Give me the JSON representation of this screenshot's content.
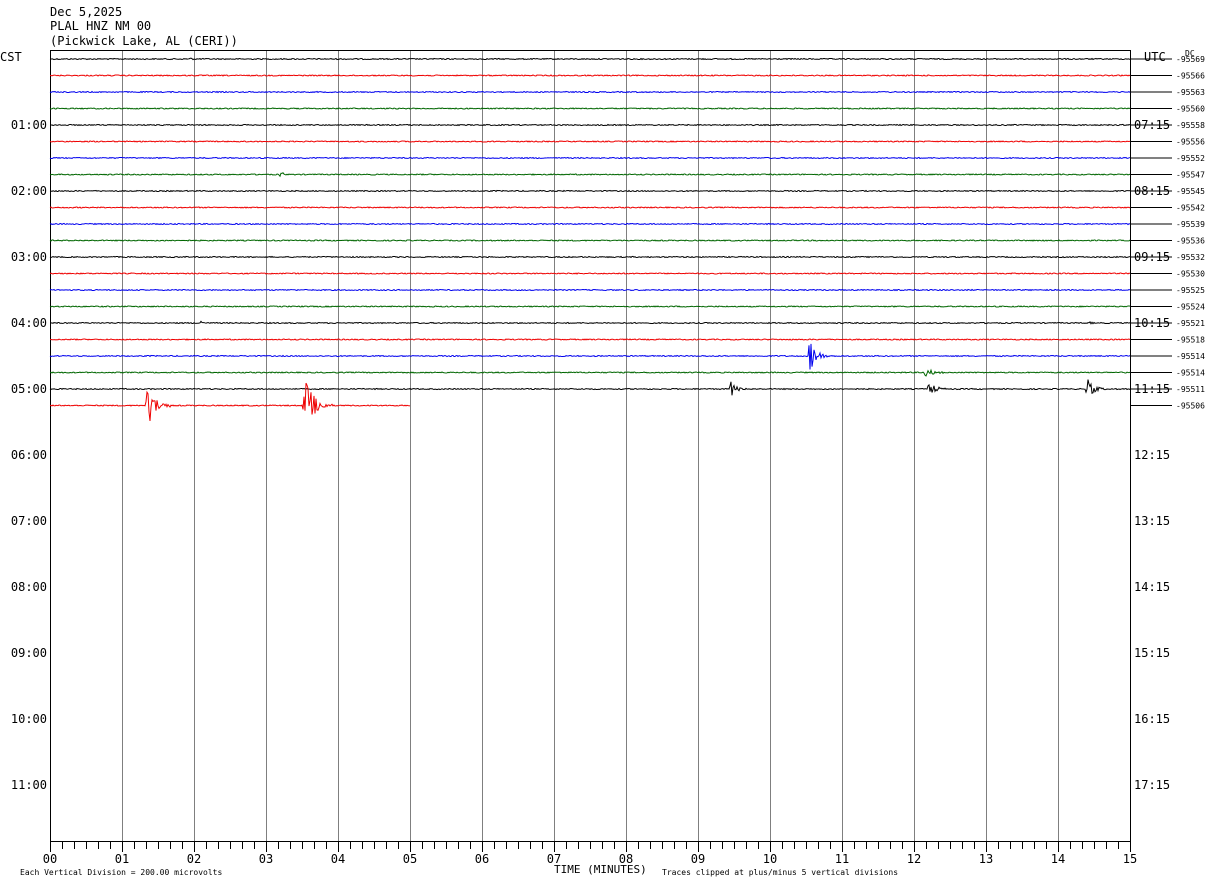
{
  "header": {
    "date": "Dec 5,2025",
    "station": "PLAL HNZ NM 00",
    "location": "(Pickwick Lake, AL (CERI))"
  },
  "labels": {
    "left_zone": "CST",
    "right_zone": "UTC",
    "dc": "DC",
    "xlabel": "TIME (MINUTES)",
    "scale_note": "Each Vertical Division =  200.00 microvolts",
    "clip_note": "Traces clipped at plus/minus 5 vertical divisions"
  },
  "colors": {
    "cycle": [
      "#000000",
      "#ee0000",
      "#0000ee",
      "#006600"
    ],
    "grid": "#7f7f7f"
  },
  "chart_data": {
    "type": "line",
    "title": "PLAL HNZ NM 00",
    "xlabel": "TIME (MINUTES)",
    "xlim": [
      0,
      15
    ],
    "x_ticks": [
      "00",
      "01",
      "02",
      "03",
      "04",
      "05",
      "06",
      "07",
      "08",
      "09",
      "10",
      "11",
      "12",
      "13",
      "14",
      "15"
    ],
    "row_minutes": 15,
    "rows_total": 48,
    "left_time_labels": [
      {
        "row": 4,
        "label": "01:00"
      },
      {
        "row": 8,
        "label": "02:00"
      },
      {
        "row": 12,
        "label": "03:00"
      },
      {
        "row": 16,
        "label": "04:00"
      },
      {
        "row": 20,
        "label": "05:00"
      },
      {
        "row": 24,
        "label": "06:00"
      },
      {
        "row": 28,
        "label": "07:00"
      },
      {
        "row": 32,
        "label": "08:00"
      },
      {
        "row": 36,
        "label": "09:00"
      },
      {
        "row": 40,
        "label": "10:00"
      },
      {
        "row": 44,
        "label": "11:00"
      }
    ],
    "right_time_labels": [
      {
        "row": 4,
        "label": "07:15"
      },
      {
        "row": 8,
        "label": "08:15"
      },
      {
        "row": 12,
        "label": "09:15"
      },
      {
        "row": 16,
        "label": "10:15"
      },
      {
        "row": 20,
        "label": "11:15"
      },
      {
        "row": 24,
        "label": "12:15"
      },
      {
        "row": 28,
        "label": "13:15"
      },
      {
        "row": 32,
        "label": "14:15"
      },
      {
        "row": 36,
        "label": "15:15"
      },
      {
        "row": 40,
        "label": "16:15"
      },
      {
        "row": 44,
        "label": "17:15"
      }
    ],
    "dc_offsets": [
      "-95569",
      "-95566",
      "-95563",
      "-95560",
      "-95558",
      "-95556",
      "-95552",
      "-95547",
      "-95545",
      "-95542",
      "-95539",
      "-95536",
      "-95532",
      "-95530",
      "-95525",
      "-95524",
      "-95521",
      "-95518",
      "-95514",
      "-95514",
      "-95511",
      "-95506"
    ],
    "traces": [
      {
        "row": 0,
        "end": 15,
        "events": [
          {
            "t": 1.95,
            "amp": 3,
            "dur": 0.05
          }
        ]
      },
      {
        "row": 1,
        "end": 15,
        "events": []
      },
      {
        "row": 2,
        "end": 15,
        "events": []
      },
      {
        "row": 3,
        "end": 15,
        "events": []
      },
      {
        "row": 4,
        "end": 15,
        "events": []
      },
      {
        "row": 5,
        "end": 15,
        "events": []
      },
      {
        "row": 6,
        "end": 15,
        "events": []
      },
      {
        "row": 7,
        "end": 15,
        "events": [
          {
            "t": 3.2,
            "amp": 4,
            "dur": 0.12
          }
        ]
      },
      {
        "row": 8,
        "end": 15,
        "events": []
      },
      {
        "row": 9,
        "end": 15,
        "events": []
      },
      {
        "row": 10,
        "end": 15,
        "events": []
      },
      {
        "row": 11,
        "end": 15,
        "events": []
      },
      {
        "row": 12,
        "end": 15,
        "events": []
      },
      {
        "row": 13,
        "end": 15,
        "events": []
      },
      {
        "row": 14,
        "end": 15,
        "events": []
      },
      {
        "row": 15,
        "end": 15,
        "events": []
      },
      {
        "row": 16,
        "end": 15,
        "events": [
          {
            "t": 2.1,
            "amp": 4,
            "dur": 0.06
          },
          {
            "t": 14.45,
            "amp": 2,
            "dur": 0.06
          }
        ]
      },
      {
        "row": 17,
        "end": 15,
        "events": []
      },
      {
        "row": 18,
        "end": 15,
        "events": [
          {
            "t": 10.55,
            "amp": 20,
            "dur": 0.3
          }
        ]
      },
      {
        "row": 19,
        "end": 15,
        "events": [
          {
            "t": 12.15,
            "amp": 6,
            "dur": 0.3
          }
        ]
      },
      {
        "row": 20,
        "end": 15,
        "events": [
          {
            "t": 9.45,
            "amp": 9,
            "dur": 0.25
          },
          {
            "t": 12.2,
            "amp": 8,
            "dur": 0.28
          },
          {
            "t": 14.4,
            "amp": 11,
            "dur": 0.28
          }
        ]
      },
      {
        "row": 21,
        "end": 5,
        "events": [
          {
            "t": 1.35,
            "amp": 23,
            "dur": 0.35
          },
          {
            "t": 3.53,
            "amp": 30,
            "dur": 0.4
          }
        ]
      }
    ]
  }
}
